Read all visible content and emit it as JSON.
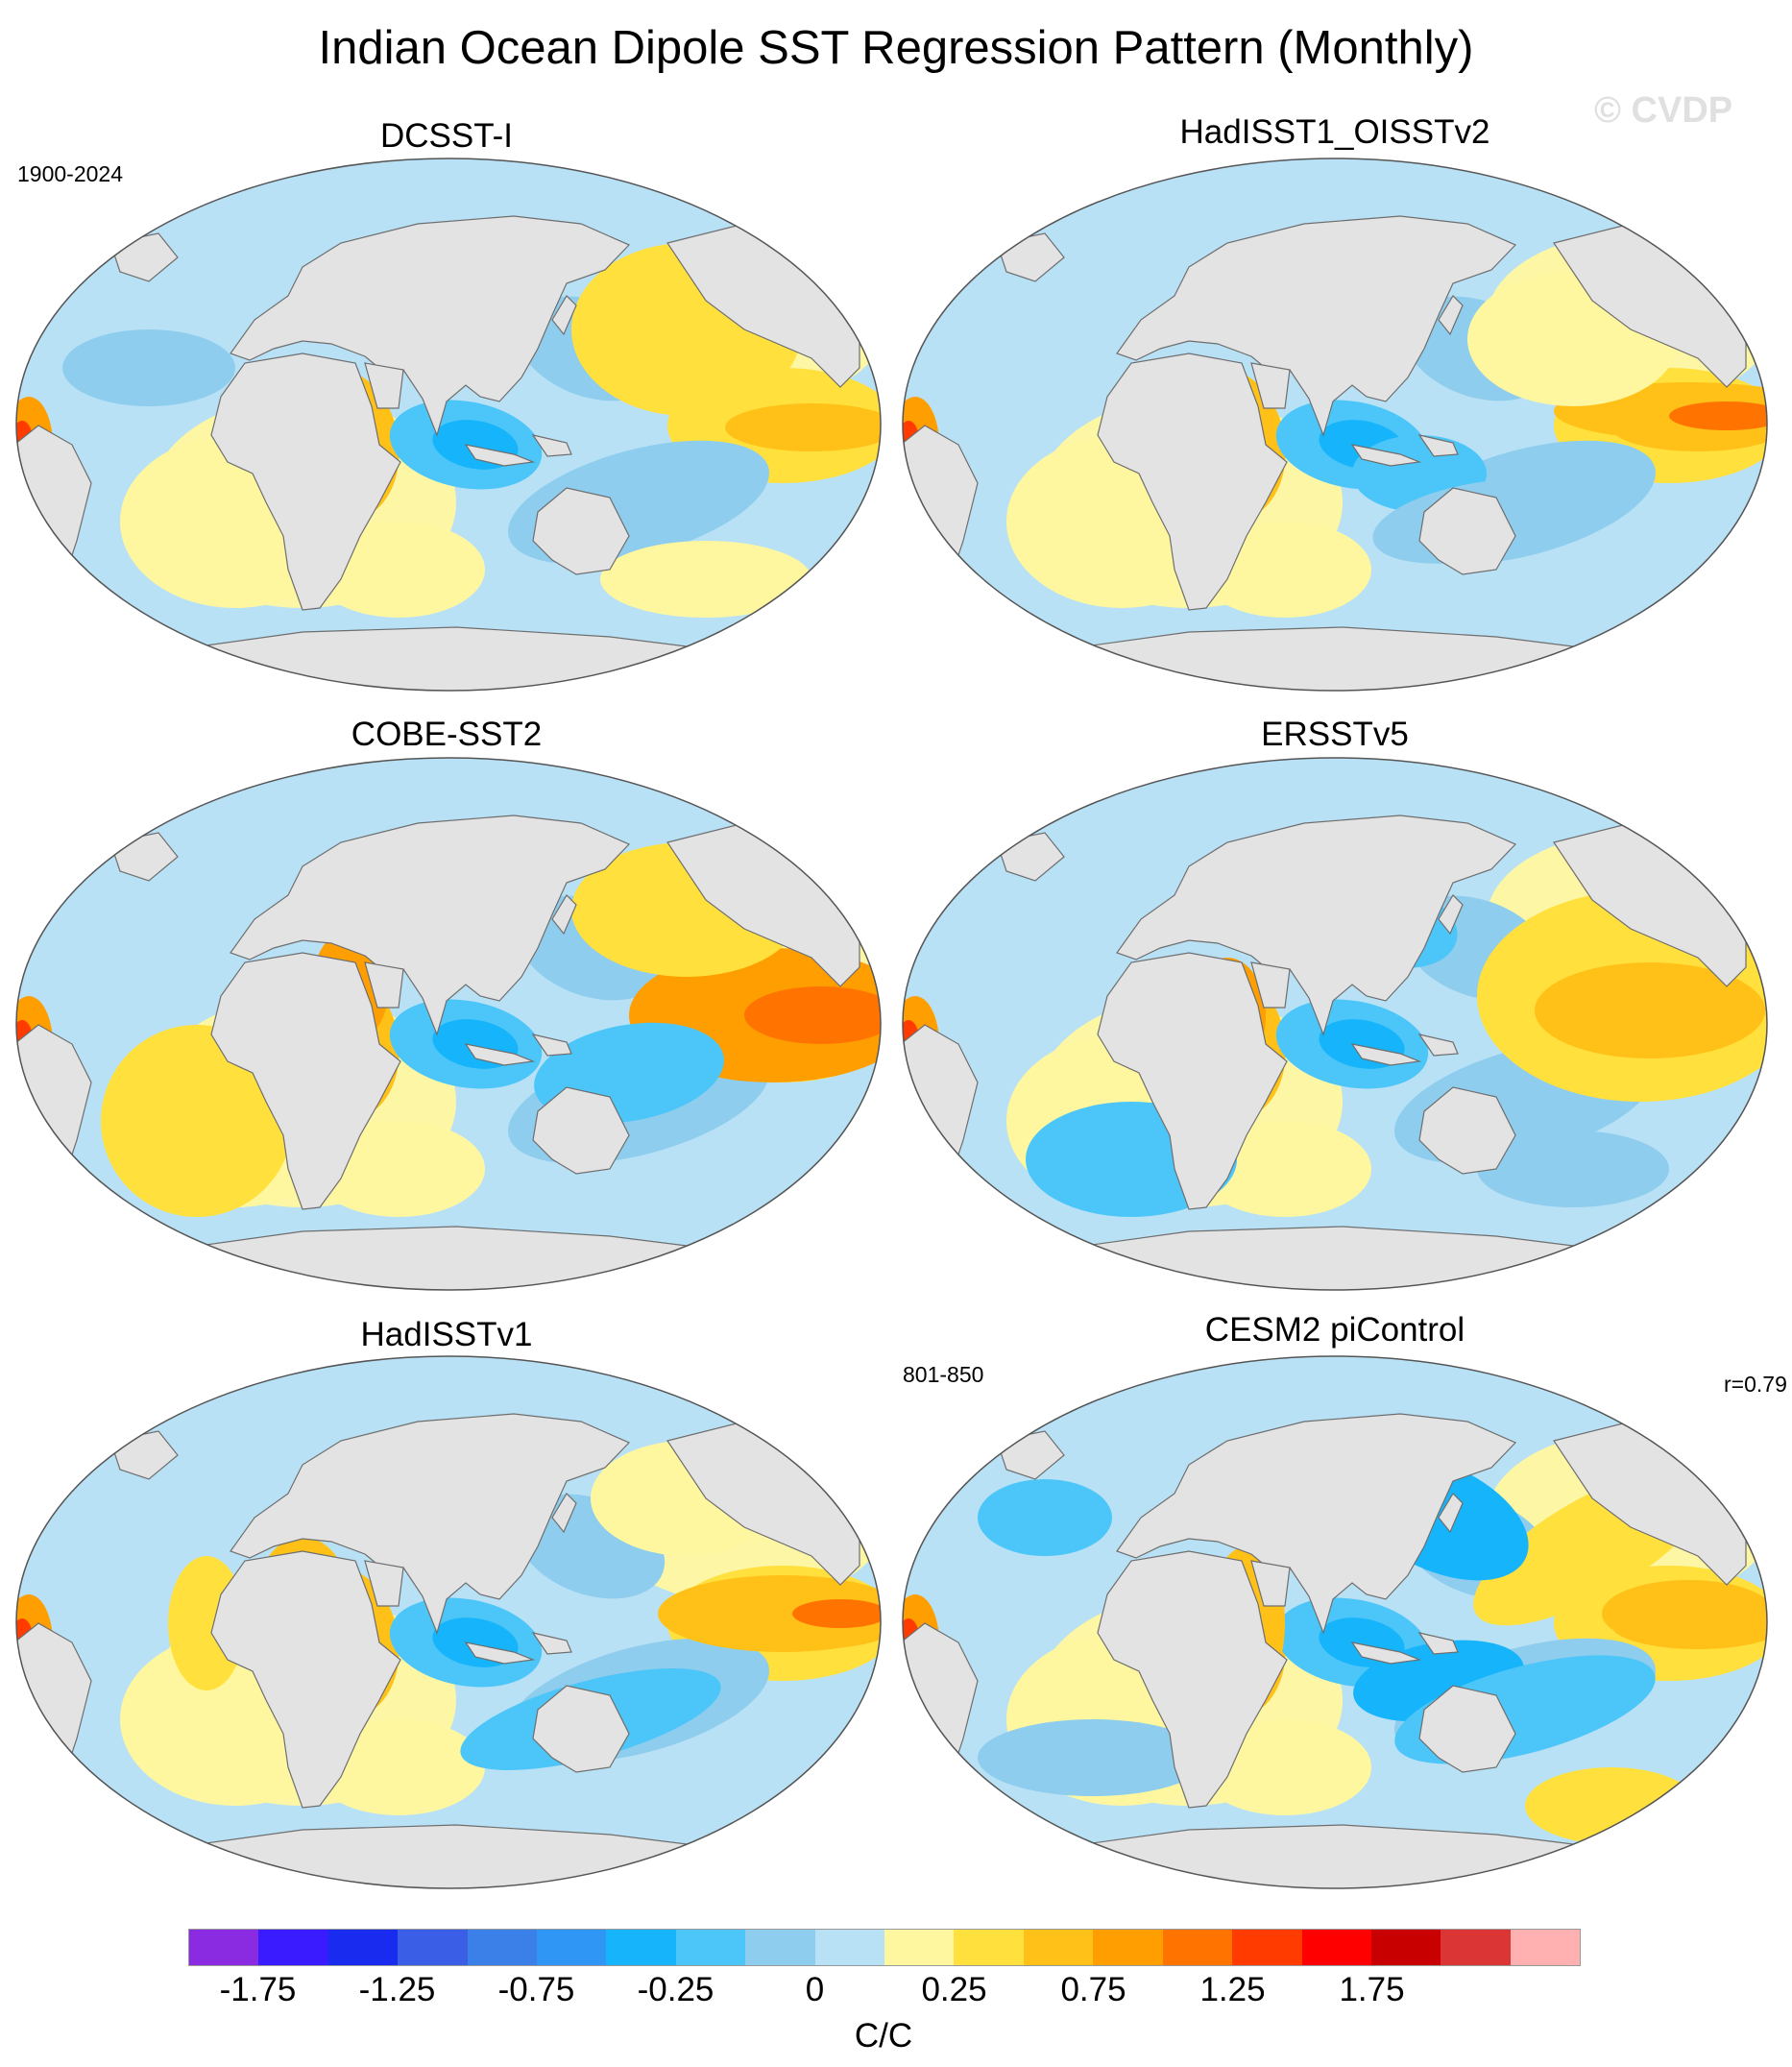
{
  "title": "Indian Ocean Dipole SST Regression Pattern (Monthly)",
  "watermark": "© CVDP",
  "panels": [
    {
      "title": "DCSST-I",
      "note_left": "1900-2024",
      "note_right": ""
    },
    {
      "title": "HadISST1_OISSTv2",
      "note_left": "",
      "note_right": ""
    },
    {
      "title": "COBE-SST2",
      "note_left": "",
      "note_right": ""
    },
    {
      "title": "ERSSTv5",
      "note_left": "",
      "note_right": ""
    },
    {
      "title": "HadISSTv1",
      "note_left": "",
      "note_right": ""
    },
    {
      "title": "CESM2 piControl",
      "note_left": "801-850",
      "note_right": "r=0.79"
    }
  ],
  "colorbar": {
    "unit": "C/C",
    "colors": [
      "#8a2be2",
      "#3a1aff",
      "#1a2bf0",
      "#3a5ee6",
      "#3b7fe8",
      "#2f96f5",
      "#16b4fa",
      "#4cc6f9",
      "#8ecdee",
      "#b9e1f5",
      "#fff7a0",
      "#ffe03c",
      "#ffc118",
      "#ff9e00",
      "#ff7400",
      "#ff3b00",
      "#ff0000",
      "#c80000",
      "#dc3535",
      "#ffb0b0"
    ],
    "tick_labels": [
      "-1.75",
      "-1.25",
      "-0.75",
      "-0.25",
      "0",
      "0.25",
      "0.75",
      "1.25",
      "1.75"
    ]
  },
  "colors": {
    "land": "#e3e3e3",
    "coast": "#6e6e6e",
    "ocean_neutral": "#b9e1f5"
  }
}
